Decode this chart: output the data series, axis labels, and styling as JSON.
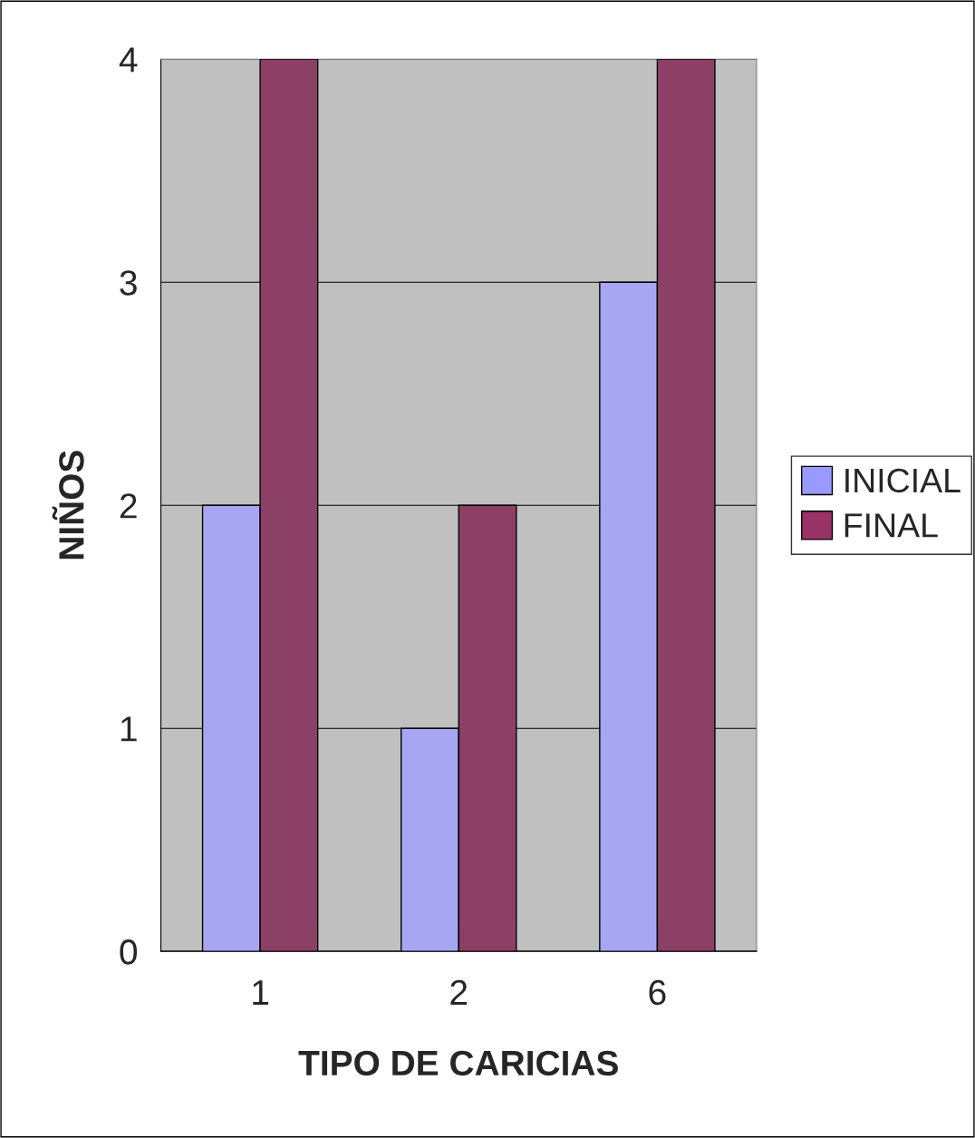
{
  "chart_data": {
    "type": "bar",
    "xlabel": "TIPO DE CARICIAS",
    "ylabel": "NIÑOS",
    "categories": [
      "1",
      "2",
      "6"
    ],
    "series": [
      {
        "name": "INICIAL",
        "color": "#9999ff",
        "values": [
          2,
          1,
          3
        ]
      },
      {
        "name": "FINAL",
        "color": "#993366",
        "values": [
          4,
          2,
          4
        ]
      }
    ],
    "ylim": [
      0,
      4
    ],
    "yticks": [
      0,
      1,
      2,
      3,
      4
    ],
    "grid": "y",
    "legend": "right"
  }
}
